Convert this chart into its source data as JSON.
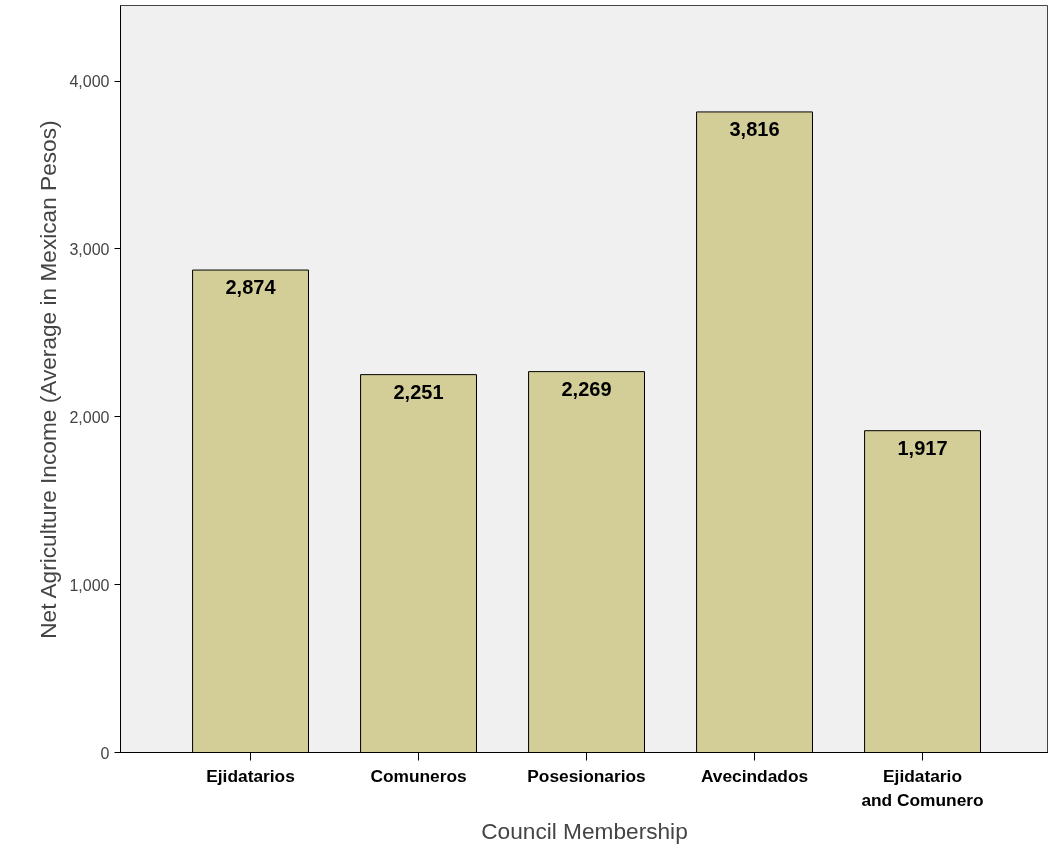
{
  "chart_data": {
    "type": "bar",
    "xlabel": "Council Membership",
    "ylabel": "Net Agriculture Income (Average in Mexican Pesos)",
    "categories": [
      "Ejidatarios",
      "Comuneros",
      "Posesionarios",
      "Avecindados",
      "Ejidatario and Comunero"
    ],
    "values": [
      2874,
      2251,
      2269,
      3816,
      1917
    ],
    "color": "#d3ce97",
    "ylim": [
      0,
      4450
    ],
    "yticks": [
      0,
      {
        "value": 1000,
        "label": "1,000"
      },
      {
        "value": 2000,
        "label": "2,000"
      },
      {
        "value": 3000,
        "label": "3,000"
      },
      {
        "value": 4000,
        "label": "4,000"
      }
    ],
    "value_labels": [
      "2,874",
      "2,251",
      "2,269",
      "3,816",
      "1,917"
    ],
    "grid": false
  }
}
